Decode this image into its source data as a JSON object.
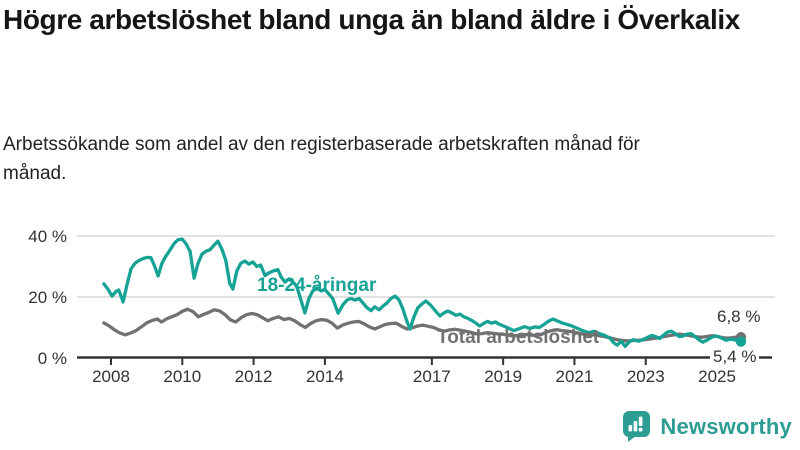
{
  "header": {
    "title": "Högre arbetslöshet bland unga än bland äldre i Överkalix",
    "subtitle": "Arbetssökande som andel av den registerbaserade arbetskraften månad för månad."
  },
  "chart_data": {
    "type": "line",
    "unit": "%",
    "grid": "horizontal",
    "x_axis": {
      "ticks": [
        2008,
        2010,
        2012,
        2014,
        2017,
        2019,
        2021,
        2023,
        2025
      ],
      "range": [
        2007.7,
        2026.3
      ]
    },
    "y_axis": {
      "tick_labels": [
        "40 %",
        "20 %",
        "0 %"
      ],
      "tick_values": [
        40,
        20,
        0
      ],
      "range": [
        0,
        42
      ]
    },
    "colors": {
      "youth": "#17a296",
      "total": "#717171",
      "grid": "#d9d9d9",
      "axis": "#333333",
      "text": "#333333"
    },
    "series": [
      {
        "name": "Total arbetslöshet",
        "color": "#717171",
        "end_label": "6,8 %",
        "end_value": 6.8,
        "x": [
          2007.8,
          2007.95,
          2008.1,
          2008.25,
          2008.4,
          2008.55,
          2008.7,
          2008.85,
          2009,
          2009.15,
          2009.3,
          2009.42,
          2009.55,
          2009.7,
          2009.85,
          2010,
          2010.15,
          2010.3,
          2010.45,
          2010.6,
          2010.75,
          2010.9,
          2011.05,
          2011.2,
          2011.35,
          2011.5,
          2011.65,
          2011.8,
          2011.95,
          2012.1,
          2012.25,
          2012.4,
          2012.55,
          2012.7,
          2012.85,
          2013,
          2013.15,
          2013.3,
          2013.45,
          2013.6,
          2013.75,
          2013.9,
          2014.05,
          2014.2,
          2014.35,
          2014.5,
          2014.65,
          2014.8,
          2014.95,
          2015.1,
          2015.25,
          2015.4,
          2015.55,
          2015.7,
          2015.85,
          2016,
          2016.15,
          2016.3,
          2016.45,
          2016.6,
          2016.75,
          2016.9,
          2017.05,
          2017.2,
          2017.35,
          2017.5,
          2017.65,
          2017.8,
          2017.95,
          2018.1,
          2018.25,
          2018.4,
          2018.55,
          2018.7,
          2018.85,
          2019,
          2019.15,
          2019.3,
          2019.45,
          2019.6,
          2019.75,
          2019.9,
          2020.05,
          2020.2,
          2020.35,
          2020.5,
          2020.65,
          2020.8,
          2020.95,
          2021.1,
          2021.25,
          2021.4,
          2021.55,
          2021.7,
          2021.85,
          2022,
          2022.15,
          2022.3,
          2022.45,
          2022.6,
          2022.75,
          2022.9,
          2023.05,
          2023.2,
          2023.35,
          2023.5,
          2023.65,
          2023.8,
          2023.95,
          2024.1,
          2024.25,
          2024.4,
          2024.55,
          2024.7,
          2024.85,
          2025,
          2025.15,
          2025.3,
          2025.45,
          2025.55,
          2025.67
        ],
        "values": [
          11.5,
          10.5,
          9.2,
          8.2,
          7.6,
          8.2,
          9,
          10.2,
          11.5,
          12.3,
          12.8,
          11.8,
          12.8,
          13.5,
          14.2,
          15.3,
          16,
          15.2,
          13.5,
          14.3,
          15,
          15.8,
          15.4,
          14.2,
          12.5,
          11.8,
          13.2,
          14.2,
          14.6,
          14.2,
          13.2,
          12.2,
          13,
          13.5,
          12.6,
          13,
          12.2,
          11,
          10,
          11.3,
          12.2,
          12.6,
          12.4,
          11.4,
          9.8,
          10.8,
          11.4,
          11.8,
          12,
          11.2,
          10.2,
          9.5,
          10.3,
          11,
          11.3,
          11.4,
          10.4,
          9.5,
          9.9,
          10.5,
          10.8,
          10.4,
          10,
          9.2,
          8.8,
          9.2,
          9.4,
          9.1,
          8.8,
          8.4,
          7.9,
          8,
          8.3,
          8.1,
          7.9,
          7.8,
          7.4,
          7.2,
          7.5,
          7.7,
          7.5,
          7.4,
          7.6,
          8.4,
          9,
          9.3,
          9,
          8.8,
          8.6,
          8.2,
          7.8,
          7.5,
          7.6,
          7.3,
          7,
          6.6,
          6.1,
          5.8,
          5.6,
          5.7,
          5.8,
          5.9,
          6.1,
          6.4,
          6.6,
          7,
          7.3,
          7.6,
          7.8,
          7.6,
          7.3,
          7,
          6.8,
          7,
          7.3,
          7.1,
          6.7,
          6.5,
          6.7,
          6.9,
          6.8
        ]
      },
      {
        "name": "18-24-åringar",
        "color": "#17a296",
        "end_label": "5,4 %",
        "end_value": 5.4,
        "x": [
          2007.8,
          2007.92,
          2008.03,
          2008.14,
          2008.22,
          2008.34,
          2008.45,
          2008.56,
          2008.67,
          2008.79,
          2008.9,
          2009.01,
          2009.12,
          2009.23,
          2009.32,
          2009.43,
          2009.54,
          2009.66,
          2009.77,
          2009.88,
          2010,
          2010.1,
          2010.22,
          2010.33,
          2010.44,
          2010.55,
          2010.66,
          2010.78,
          2010.89,
          2011,
          2011.11,
          2011.22,
          2011.33,
          2011.42,
          2011.53,
          2011.64,
          2011.75,
          2011.87,
          2011.98,
          2012.09,
          2012.2,
          2012.32,
          2012.43,
          2012.54,
          2012.68,
          2012.77,
          2012.88,
          2012.99,
          2013.1,
          2013.21,
          2013.33,
          2013.44,
          2013.55,
          2013.66,
          2013.78,
          2013.89,
          2014,
          2014.11,
          2014.22,
          2014.37,
          2014.51,
          2014.62,
          2014.73,
          2014.85,
          2014.96,
          2015.07,
          2015.18,
          2015.29,
          2015.4,
          2015.52,
          2015.63,
          2015.74,
          2015.85,
          2015.97,
          2016.08,
          2016.19,
          2016.3,
          2016.39,
          2016.5,
          2016.61,
          2016.72,
          2016.83,
          2016.95,
          2017.06,
          2017.17,
          2017.23,
          2017.34,
          2017.45,
          2017.56,
          2017.68,
          2017.79,
          2017.9,
          2018.01,
          2018.12,
          2018.23,
          2018.34,
          2018.45,
          2018.56,
          2018.67,
          2018.78,
          2018.9,
          2019.01,
          2019.15,
          2019.3,
          2019.45,
          2019.6,
          2019.75,
          2019.9,
          2020.01,
          2020.12,
          2020.26,
          2020.4,
          2020.51,
          2020.65,
          2020.79,
          2020.93,
          2021.07,
          2021.23,
          2021.4,
          2021.55,
          2021.7,
          2021.85,
          2022,
          2022.1,
          2022.2,
          2022.31,
          2022.42,
          2022.53,
          2022.65,
          2022.8,
          2022.95,
          2023.06,
          2023.17,
          2023.28,
          2023.39,
          2023.5,
          2023.61,
          2023.72,
          2023.83,
          2023.94,
          2024.05,
          2024.16,
          2024.27,
          2024.38,
          2024.49,
          2024.6,
          2024.71,
          2024.82,
          2024.93,
          2025.04,
          2025.15,
          2025.26,
          2025.37,
          2025.48,
          2025.58,
          2025.67
        ],
        "values": [
          24.3,
          22.5,
          20.3,
          21.8,
          22.3,
          18.4,
          24,
          29.2,
          31,
          32,
          32.6,
          33,
          32.9,
          30,
          26.9,
          31.1,
          33.4,
          35.5,
          37.5,
          38.8,
          39,
          37.5,
          35,
          26.2,
          31,
          34,
          35,
          35.5,
          37,
          38.3,
          35.7,
          32,
          24.5,
          22.6,
          28.5,
          31,
          31.8,
          30.8,
          31.5,
          30,
          30.5,
          27,
          27.9,
          28.5,
          29,
          26.6,
          24.9,
          25.9,
          25,
          23.5,
          19,
          14.8,
          19.5,
          22,
          23,
          22,
          22.5,
          21,
          19.5,
          14.7,
          17.5,
          19,
          19.5,
          19,
          19.5,
          18,
          16.5,
          15.5,
          16.8,
          15.8,
          17,
          18,
          19.5,
          20.3,
          19,
          16,
          12,
          9.5,
          13.5,
          16.5,
          17.7,
          18.7,
          17.5,
          16,
          14.5,
          13.8,
          14.8,
          15.4,
          14.8,
          14,
          14.4,
          13.5,
          13,
          12.3,
          11.5,
          10.5,
          11.3,
          12,
          11.4,
          11.8,
          11,
          10.5,
          9.8,
          9,
          9.6,
          10.3,
          9.7,
          10.2,
          10,
          10.8,
          12,
          12.8,
          12.2,
          11.5,
          11,
          10.5,
          9.8,
          9,
          8.3,
          8.8,
          8,
          7.4,
          6.5,
          5,
          4.2,
          5.5,
          3.8,
          5.2,
          6,
          5.5,
          6.2,
          6.8,
          7.4,
          7,
          6.4,
          7.5,
          8.5,
          8.8,
          8,
          7,
          7.2,
          7.8,
          8,
          7,
          6,
          5.2,
          5.8,
          6.6,
          7.2,
          7,
          6.4,
          5.8,
          6.2,
          6,
          5.6,
          5.4
        ]
      }
    ]
  },
  "footer": {
    "brand": "Newsworthy"
  }
}
